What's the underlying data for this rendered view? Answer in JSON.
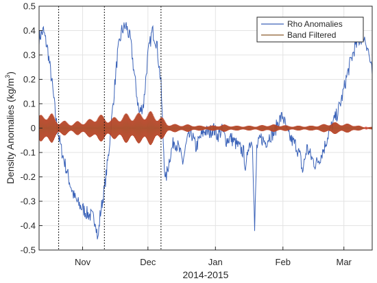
{
  "chart_data": {
    "type": "line",
    "xlabel": "2014-2015",
    "ylabel_main": "Density Anomalies (kg/m",
    "ylabel_sup": "3",
    "ylabel_close": ")",
    "xlim": [
      "2014-10-12",
      "2015-03-14"
    ],
    "ylim": [
      -0.5,
      0.5
    ],
    "y_ticks": [
      {
        "value": 0.5,
        "label": "0.5"
      },
      {
        "value": 0.4,
        "label": "0.4"
      },
      {
        "value": 0.3,
        "label": "0.3"
      },
      {
        "value": 0.2,
        "label": "0.2"
      },
      {
        "value": 0.1,
        "label": "0.1"
      },
      {
        "value": 0,
        "label": "0"
      },
      {
        "value": -0.1,
        "label": "-0.1"
      },
      {
        "value": -0.2,
        "label": "-0.2"
      },
      {
        "value": -0.3,
        "label": "-0.3"
      },
      {
        "value": -0.4,
        "label": "-0.4"
      },
      {
        "value": -0.5,
        "label": "-0.5"
      }
    ],
    "x_ticks": [
      {
        "date": "2014-11-01",
        "label": "Nov"
      },
      {
        "date": "2014-12-01",
        "label": "Dec"
      },
      {
        "date": "2015-01-01",
        "label": "Jan"
      },
      {
        "date": "2015-02-01",
        "label": "Feb"
      },
      {
        "date": "2015-03-01",
        "label": "Mar"
      }
    ],
    "grid": true,
    "legend_position": "top-right",
    "vertical_markers": [
      "2014-10-21",
      "2014-11-11",
      "2014-12-07"
    ],
    "series": [
      {
        "name": "Rho Anomalies",
        "color": "#3a62b8",
        "points": [
          [
            "2014-10-12",
            0.37
          ],
          [
            "2014-10-14",
            0.4
          ],
          [
            "2014-10-16",
            0.32
          ],
          [
            "2014-10-18",
            0.18
          ],
          [
            "2014-10-20",
            0.02
          ],
          [
            "2014-10-22",
            -0.08
          ],
          [
            "2014-10-24",
            -0.15
          ],
          [
            "2014-10-26",
            -0.22
          ],
          [
            "2014-10-28",
            -0.28
          ],
          [
            "2014-10-30",
            -0.31
          ],
          [
            "2014-11-01",
            -0.33
          ],
          [
            "2014-11-03",
            -0.35
          ],
          [
            "2014-11-05",
            -0.36
          ],
          [
            "2014-11-07",
            -0.38
          ],
          [
            "2014-11-08",
            -0.46
          ],
          [
            "2014-11-09",
            -0.36
          ],
          [
            "2014-11-11",
            -0.25
          ],
          [
            "2014-11-13",
            -0.1
          ],
          [
            "2014-11-15",
            0.1
          ],
          [
            "2014-11-17",
            0.3
          ],
          [
            "2014-11-19",
            0.4
          ],
          [
            "2014-11-21",
            0.42
          ],
          [
            "2014-11-23",
            0.36
          ],
          [
            "2014-11-25",
            0.2
          ],
          [
            "2014-11-27",
            0.06
          ],
          [
            "2014-11-29",
            0.1
          ],
          [
            "2014-12-01",
            0.3
          ],
          [
            "2014-12-03",
            0.4
          ],
          [
            "2014-12-05",
            0.35
          ],
          [
            "2014-12-07",
            0.18
          ],
          [
            "2014-12-08",
            -0.05
          ],
          [
            "2014-12-09",
            -0.22
          ],
          [
            "2014-12-11",
            -0.12
          ],
          [
            "2014-12-13",
            -0.05
          ],
          [
            "2014-12-15",
            -0.08
          ],
          [
            "2014-12-17",
            -0.14
          ],
          [
            "2014-12-19",
            -0.05
          ],
          [
            "2014-12-21",
            -0.02
          ],
          [
            "2014-12-23",
            -0.08
          ],
          [
            "2014-12-25",
            -0.04
          ],
          [
            "2014-12-27",
            -0.01
          ],
          [
            "2014-12-29",
            -0.02
          ],
          [
            "2014-12-31",
            0.0
          ],
          [
            "2015-01-02",
            -0.03
          ],
          [
            "2015-01-04",
            -0.01
          ],
          [
            "2015-01-06",
            -0.05
          ],
          [
            "2015-01-08",
            -0.04
          ],
          [
            "2015-01-10",
            -0.06
          ],
          [
            "2015-01-12",
            -0.08
          ],
          [
            "2015-01-14",
            -0.1
          ],
          [
            "2015-01-15",
            -0.18
          ],
          [
            "2015-01-16",
            -0.07
          ],
          [
            "2015-01-18",
            -0.05
          ],
          [
            "2015-01-19",
            -0.42
          ],
          [
            "2015-01-20",
            -0.08
          ],
          [
            "2015-01-22",
            -0.04
          ],
          [
            "2015-01-24",
            -0.06
          ],
          [
            "2015-01-26",
            -0.03
          ],
          [
            "2015-01-28",
            -0.02
          ],
          [
            "2015-01-30",
            0.03
          ],
          [
            "2015-02-01",
            0.05
          ],
          [
            "2015-02-03",
            -0.02
          ],
          [
            "2015-02-05",
            -0.05
          ],
          [
            "2015-02-07",
            -0.07
          ],
          [
            "2015-02-09",
            -0.12
          ],
          [
            "2015-02-10",
            -0.18
          ],
          [
            "2015-02-12",
            -0.08
          ],
          [
            "2015-02-14",
            -0.12
          ],
          [
            "2015-02-16",
            -0.15
          ],
          [
            "2015-02-18",
            -0.12
          ],
          [
            "2015-02-20",
            -0.08
          ],
          [
            "2015-02-22",
            -0.02
          ],
          [
            "2015-02-24",
            0.02
          ],
          [
            "2015-02-26",
            0.06
          ],
          [
            "2015-02-28",
            0.12
          ],
          [
            "2015-03-02",
            0.2
          ],
          [
            "2015-03-04",
            0.27
          ],
          [
            "2015-03-06",
            0.33
          ],
          [
            "2015-03-08",
            0.36
          ],
          [
            "2015-03-10",
            0.38
          ],
          [
            "2015-03-12",
            0.33
          ],
          [
            "2015-03-14",
            0.22
          ]
        ]
      },
      {
        "name": "Band Filtered",
        "color": "#8b5a2b",
        "highlight_color": "#ff2020",
        "envelope": [
          [
            "2014-10-12",
            0.05
          ],
          [
            "2014-10-15",
            0.07
          ],
          [
            "2014-10-18",
            0.06
          ],
          [
            "2014-10-21",
            0.03
          ],
          [
            "2014-10-24",
            0.03
          ],
          [
            "2014-10-27",
            0.02
          ],
          [
            "2014-10-30",
            0.03
          ],
          [
            "2014-11-02",
            0.03
          ],
          [
            "2014-11-05",
            0.04
          ],
          [
            "2014-11-08",
            0.06
          ],
          [
            "2014-11-11",
            0.05
          ],
          [
            "2014-11-14",
            0.04
          ],
          [
            "2014-11-17",
            0.05
          ],
          [
            "2014-11-20",
            0.06
          ],
          [
            "2014-11-23",
            0.06
          ],
          [
            "2014-11-26",
            0.06
          ],
          [
            "2014-11-29",
            0.07
          ],
          [
            "2014-12-02",
            0.07
          ],
          [
            "2014-12-05",
            0.06
          ],
          [
            "2014-12-07",
            0.05
          ],
          [
            "2014-12-10",
            0.02
          ],
          [
            "2014-12-15",
            0.015
          ],
          [
            "2014-12-20",
            0.015
          ],
          [
            "2014-12-25",
            0.01
          ],
          [
            "2014-12-30",
            0.01
          ],
          [
            "2015-01-05",
            0.015
          ],
          [
            "2015-01-10",
            0.01
          ],
          [
            "2015-01-15",
            0.01
          ],
          [
            "2015-01-20",
            0.01
          ],
          [
            "2015-01-25",
            0.015
          ],
          [
            "2015-01-30",
            0.015
          ],
          [
            "2015-02-04",
            0.01
          ],
          [
            "2015-02-09",
            0.01
          ],
          [
            "2015-02-14",
            0.01
          ],
          [
            "2015-02-19",
            0.015
          ],
          [
            "2015-02-24",
            0.025
          ],
          [
            "2015-03-01",
            0.02
          ],
          [
            "2015-03-06",
            0.015
          ],
          [
            "2015-03-10",
            0.005
          ],
          [
            "2015-03-14",
            0.005
          ]
        ]
      }
    ]
  }
}
